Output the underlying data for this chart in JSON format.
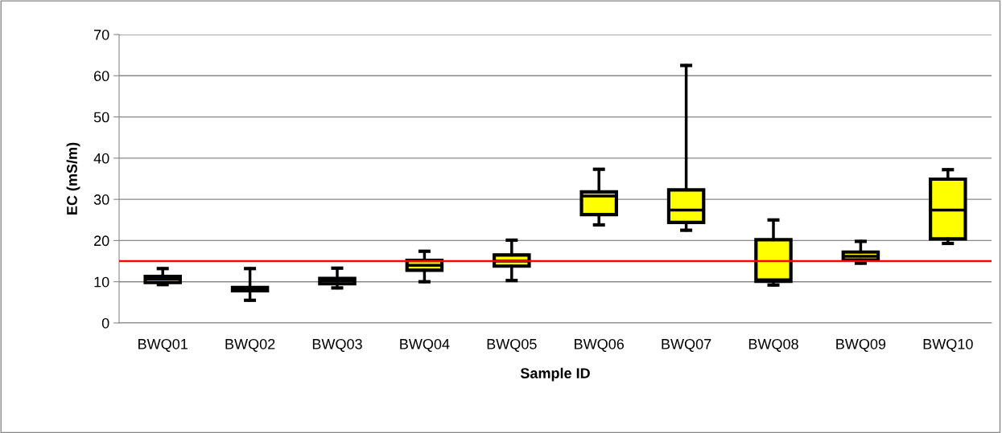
{
  "chart_data": {
    "type": "box",
    "xlabel": "Sample ID",
    "ylabel": "EC (mS/m)",
    "categories": [
      "BWQ01",
      "BWQ02",
      "BWQ03",
      "BWQ04",
      "BWQ05",
      "BWQ06",
      "BWQ07",
      "BWQ08",
      "BWQ09",
      "BWQ10"
    ],
    "series": [
      {
        "color": "#ffff00",
        "boxes": [
          {
            "low": 9.3,
            "q1": 9.8,
            "median": 10.6,
            "q3": 11.3,
            "high": 13.2
          },
          {
            "low": 5.5,
            "q1": 7.8,
            "median": 8.2,
            "q3": 8.6,
            "high": 13.2
          },
          {
            "low": 8.5,
            "q1": 9.5,
            "median": 10.2,
            "q3": 10.8,
            "high": 13.3
          },
          {
            "low": 10.0,
            "q1": 12.8,
            "median": 14.0,
            "q3": 15.2,
            "high": 17.4
          },
          {
            "low": 10.3,
            "q1": 13.8,
            "median": 15.0,
            "q3": 16.5,
            "high": 20.1
          },
          {
            "low": 23.8,
            "q1": 26.3,
            "median": 30.8,
            "q3": 31.8,
            "high": 37.3
          },
          {
            "low": 22.5,
            "q1": 24.4,
            "median": 27.4,
            "q3": 32.3,
            "high": 62.5
          },
          {
            "low": 9.2,
            "q1": 10.1,
            "median": 10.5,
            "q3": 20.2,
            "high": 25.0
          },
          {
            "low": 14.5,
            "q1": 15.3,
            "median": 16.2,
            "q3": 17.2,
            "high": 19.8
          },
          {
            "low": 19.3,
            "q1": 20.4,
            "median": 27.4,
            "q3": 34.9,
            "high": 37.2
          }
        ]
      }
    ],
    "ylim": [
      0,
      70
    ],
    "yticks": [
      0,
      10,
      20,
      30,
      40,
      50,
      60,
      70
    ],
    "grid": "y",
    "ref_lines": [
      {
        "axis": "y",
        "value": 15,
        "color": "#ff0000"
      }
    ]
  }
}
